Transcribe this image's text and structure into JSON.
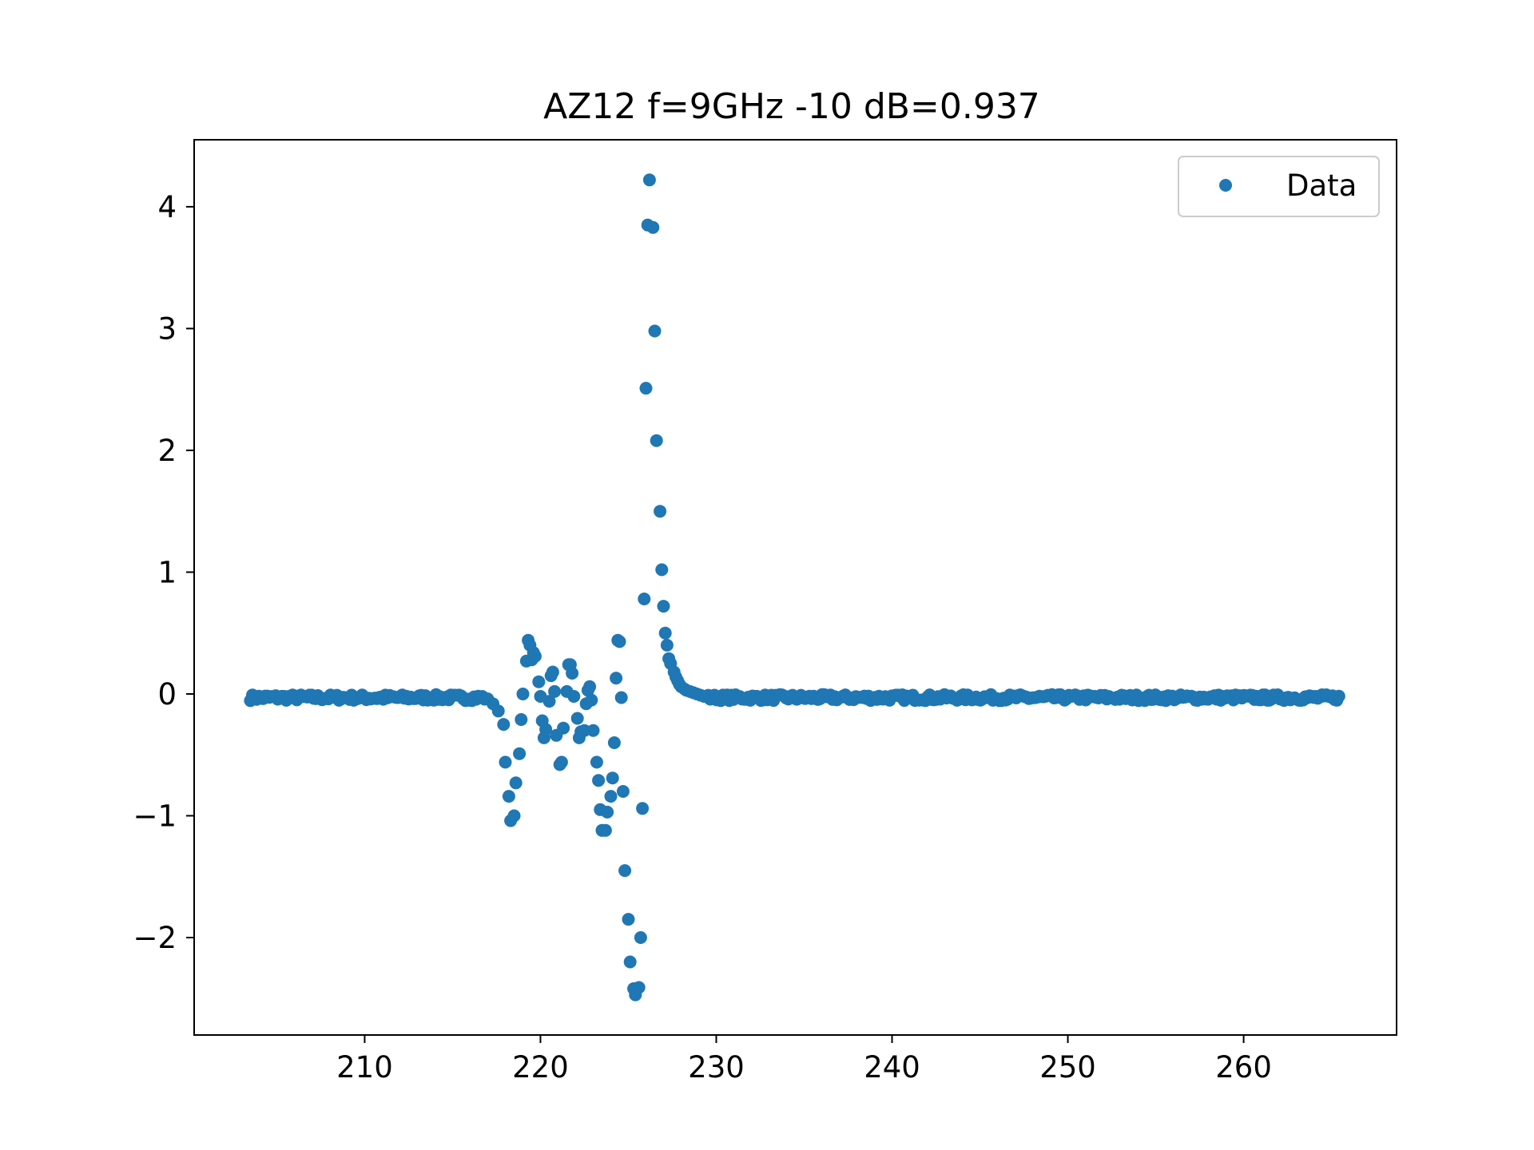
{
  "chart_data": {
    "type": "scatter",
    "title": "AZ12 f=9GHz -10 dB=0.937",
    "xlabel": "",
    "ylabel": "",
    "xlim": [
      200.3,
      268.7
    ],
    "ylim": [
      -2.8,
      4.55
    ],
    "xticks": [
      210,
      220,
      230,
      240,
      250,
      260
    ],
    "yticks": [
      -2,
      -1,
      0,
      1,
      2,
      3,
      4
    ],
    "grid": false,
    "legend_position": "top-right",
    "series": [
      {
        "name": "Data",
        "color": "#1f77b4",
        "marker": "circle",
        "baseline_x_range": [
          203.5,
          265.5
        ],
        "baseline_value": -0.03,
        "baseline_noise": 0.025,
        "x": [
          217.0,
          217.3,
          217.6,
          217.9,
          218.0,
          218.2,
          218.3,
          218.5,
          218.6,
          218.8,
          218.9,
          219.0,
          219.2,
          219.3,
          219.4,
          219.5,
          219.6,
          219.7,
          219.9,
          220.0,
          220.1,
          220.2,
          220.3,
          220.5,
          220.6,
          220.7,
          220.8,
          220.9,
          221.1,
          221.2,
          221.3,
          221.5,
          221.6,
          221.7,
          221.8,
          221.9,
          222.1,
          222.2,
          222.3,
          222.5,
          222.6,
          222.7,
          222.8,
          222.9,
          223.0,
          223.2,
          223.3,
          223.4,
          223.5,
          223.7,
          223.8,
          224.0,
          224.1,
          224.2,
          224.3,
          224.4,
          224.5,
          224.6,
          224.7,
          224.8,
          225.0,
          225.1,
          225.3,
          225.4,
          225.5,
          225.6,
          225.7,
          225.8,
          225.9,
          226.0,
          226.1,
          226.2,
          226.4,
          226.5,
          226.6,
          226.8,
          226.9,
          227.0,
          227.1,
          227.2,
          227.3,
          227.4,
          227.6,
          227.7,
          227.8,
          227.9,
          228.0,
          228.2,
          228.3,
          228.5,
          228.7,
          228.9,
          229.1,
          229.3
        ],
        "y": [
          -0.04,
          -0.08,
          -0.14,
          -0.25,
          -0.56,
          -0.84,
          -1.04,
          -1.0,
          -0.73,
          -0.49,
          -0.21,
          0.0,
          0.27,
          0.44,
          0.4,
          0.28,
          0.34,
          0.31,
          0.1,
          -0.02,
          -0.22,
          -0.36,
          -0.29,
          -0.06,
          0.15,
          0.18,
          0.02,
          -0.34,
          -0.58,
          -0.56,
          -0.28,
          0.02,
          0.24,
          0.24,
          0.17,
          -0.02,
          -0.2,
          -0.36,
          -0.31,
          -0.3,
          -0.08,
          0.03,
          0.06,
          -0.05,
          -0.3,
          -0.56,
          -0.71,
          -0.95,
          -1.12,
          -1.12,
          -0.97,
          -0.84,
          -0.69,
          -0.4,
          0.13,
          0.44,
          0.43,
          -0.03,
          -0.8,
          -1.45,
          -1.85,
          -2.2,
          -2.42,
          -2.47,
          -2.42,
          -2.41,
          -2.0,
          -0.94,
          0.78,
          2.51,
          3.85,
          4.22,
          3.83,
          2.98,
          2.08,
          1.5,
          1.02,
          0.72,
          0.5,
          0.4,
          0.29,
          0.25,
          0.18,
          0.14,
          0.11,
          0.08,
          0.06,
          0.04,
          0.03,
          0.02,
          0.01,
          0.0,
          -0.01,
          -0.02
        ]
      }
    ]
  }
}
